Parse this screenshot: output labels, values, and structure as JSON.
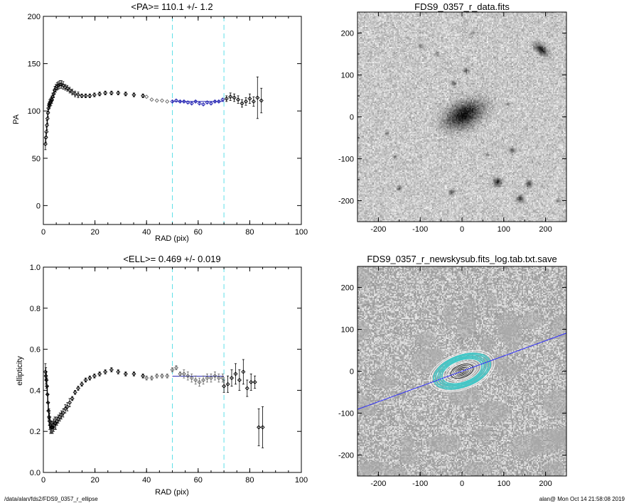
{
  "footer": {
    "path": "/data/alan/fds2/FDS9_0357_r_ellipse",
    "stamp": "alan@  Mon Oct 14 21:58:08 2019"
  },
  "chart_data": [
    {
      "id": "pa",
      "type": "scatter",
      "title": "<PA>= 110.1 +/-   1.2",
      "xlabel": "RAD (pix)",
      "ylabel": "PA",
      "xlim": [
        0,
        100
      ],
      "ylim": [
        -20,
        200
      ],
      "xticks": [
        0,
        20,
        40,
        60,
        80,
        100
      ],
      "yticks": [
        0,
        50,
        100,
        150,
        200
      ],
      "vlines": [
        50,
        70
      ],
      "fit": {
        "x": [
          50,
          70
        ],
        "y": 110.1
      },
      "series": [
        {
          "style": "black",
          "x": [
            0.8,
            1.0,
            1.2,
            1.4,
            1.6,
            1.8,
            2.0,
            2.2,
            2.4,
            2.7,
            3.0,
            3.3,
            3.6,
            4.0,
            4.4,
            4.8,
            5.3,
            5.8,
            6.4,
            7.0,
            7.7,
            8.5,
            9.3,
            10.2,
            11.2,
            12.3,
            13.5,
            14.9,
            16.4,
            18.0,
            19.8,
            21.8,
            24.0,
            26.4,
            29.0,
            31.9,
            35.1,
            38.6
          ],
          "y": [
            65,
            72,
            78,
            85,
            92,
            98,
            103,
            106,
            108,
            109,
            110,
            112,
            115,
            118,
            122,
            124,
            126,
            127,
            128,
            128,
            127,
            125,
            124,
            122,
            120,
            118,
            117,
            116,
            116,
            116,
            117,
            118,
            119,
            119,
            119,
            118,
            117,
            116
          ],
          "err": [
            6,
            5,
            5,
            5,
            5,
            4,
            4,
            4,
            4,
            4,
            4,
            4,
            4,
            4,
            4,
            4,
            4,
            4,
            4,
            4,
            4,
            3,
            3,
            3,
            3,
            3,
            3,
            2,
            2,
            2,
            2,
            2,
            2,
            2,
            2,
            2,
            2,
            2
          ]
        },
        {
          "style": "gray",
          "x": [
            40,
            42,
            44,
            46,
            48
          ],
          "y": [
            115,
            112,
            111,
            111,
            110
          ],
          "err": [
            0,
            0,
            0,
            0,
            0
          ]
        },
        {
          "style": "blue",
          "x": [
            50,
            51.5,
            53,
            54.5,
            56,
            57.5,
            59,
            60.5,
            62,
            63.5,
            65,
            66.5,
            68,
            69.5
          ],
          "y": [
            110,
            111,
            110,
            110,
            109,
            108,
            110,
            108,
            107,
            109,
            108,
            110,
            110,
            112
          ],
          "err": [
            1,
            1,
            1,
            1,
            1,
            1,
            1,
            1,
            1,
            1,
            1,
            1,
            1,
            1
          ]
        },
        {
          "style": "black",
          "x": [
            71,
            72.5,
            74,
            75.5,
            77,
            78.5,
            80,
            81.5,
            83,
            84.5
          ],
          "y": [
            113,
            115,
            114,
            112,
            108,
            110,
            113,
            110,
            114,
            111
          ],
          "err": [
            3,
            4,
            4,
            4,
            4,
            4,
            5,
            5,
            22,
            13
          ]
        }
      ]
    },
    {
      "id": "ell",
      "type": "scatter",
      "title": "<ELL>= 0.469 +/-  0.019",
      "xlabel": "RAD (pix)",
      "ylabel": "ellipticity",
      "xlim": [
        0,
        100
      ],
      "ylim": [
        0.0,
        1.0
      ],
      "xticks": [
        0,
        20,
        40,
        60,
        80,
        100
      ],
      "yticks": [
        0.0,
        0.2,
        0.4,
        0.6,
        0.8,
        1.0
      ],
      "vlines": [
        50,
        70
      ],
      "fit": {
        "x": [
          50,
          70
        ],
        "y": 0.469
      },
      "series": [
        {
          "style": "black",
          "x": [
            0.8,
            1.0,
            1.2,
            1.4,
            1.6,
            1.8,
            2.0,
            2.2,
            2.4,
            2.7,
            3.0,
            3.3,
            3.6,
            4.0,
            4.4,
            4.8,
            5.3,
            5.8,
            6.4,
            7.0,
            7.7,
            8.5,
            9.3,
            10.2,
            11.2,
            12.3,
            13.5,
            14.9,
            16.4,
            18.0,
            19.8,
            21.8,
            24.0,
            26.4,
            29.0,
            31.9,
            35.1,
            38.6
          ],
          "y": [
            0.49,
            0.47,
            0.45,
            0.42,
            0.38,
            0.34,
            0.3,
            0.27,
            0.25,
            0.23,
            0.22,
            0.22,
            0.22,
            0.23,
            0.24,
            0.24,
            0.25,
            0.26,
            0.27,
            0.28,
            0.29,
            0.31,
            0.32,
            0.34,
            0.36,
            0.39,
            0.41,
            0.43,
            0.45,
            0.46,
            0.47,
            0.48,
            0.49,
            0.5,
            0.49,
            0.48,
            0.48,
            0.47
          ],
          "err": [
            0.04,
            0.04,
            0.04,
            0.04,
            0.04,
            0.04,
            0.04,
            0.04,
            0.04,
            0.04,
            0.03,
            0.03,
            0.03,
            0.03,
            0.03,
            0.03,
            0.02,
            0.02,
            0.02,
            0.02,
            0.02,
            0.02,
            0.02,
            0.02,
            0.01,
            0.01,
            0.01,
            0.01,
            0.01,
            0.01,
            0.01,
            0.01,
            0.01,
            0.01,
            0.01,
            0.01,
            0.01,
            0.01
          ]
        },
        {
          "style": "gray",
          "x": [
            40,
            42,
            44,
            46,
            48
          ],
          "y": [
            0.46,
            0.46,
            0.47,
            0.47,
            0.47
          ],
          "err": [
            0.01,
            0.01,
            0.01,
            0.01,
            0.01
          ]
        },
        {
          "style": "gray",
          "x": [
            50,
            51.5,
            53,
            54.5,
            56,
            57.5,
            59,
            60.5,
            62,
            63.5,
            65,
            66.5,
            68,
            69.5
          ],
          "y": [
            0.5,
            0.51,
            0.48,
            0.48,
            0.47,
            0.46,
            0.45,
            0.44,
            0.45,
            0.46,
            0.46,
            0.47,
            0.46,
            0.46
          ],
          "err": [
            0.01,
            0.01,
            0.01,
            0.02,
            0.02,
            0.02,
            0.02,
            0.02,
            0.02,
            0.02,
            0.02,
            0.02,
            0.02,
            0.02
          ]
        },
        {
          "style": "black",
          "x": [
            70,
            71.5,
            73,
            74.5,
            76,
            77.5,
            79,
            80.5,
            82,
            83.5,
            85
          ],
          "y": [
            0.42,
            0.43,
            0.46,
            0.48,
            0.45,
            0.49,
            0.41,
            0.44,
            0.44,
            0.22,
            0.22
          ],
          "err": [
            0.03,
            0.04,
            0.04,
            0.05,
            0.05,
            0.06,
            0.04,
            0.04,
            0.03,
            0.09,
            0.1
          ]
        }
      ]
    },
    {
      "id": "img1",
      "type": "heatmap",
      "title": "FDS9_0357_r_data.fits",
      "xlim": [
        -250,
        250
      ],
      "ylim": [
        -250,
        250
      ],
      "xticks": [
        -200,
        -100,
        0,
        100,
        200
      ],
      "yticks": [
        -200,
        -100,
        0,
        100,
        200
      ],
      "colormap": "gray-inverted",
      "sources": [
        {
          "x": 5,
          "y": 5,
          "a": 58,
          "b": 34,
          "pa": 25,
          "peak": 0.95
        },
        {
          "x": 190,
          "y": 160,
          "a": 22,
          "b": 12,
          "pa": -40,
          "peak": 0.9
        },
        {
          "x": 85,
          "y": -155,
          "a": 12,
          "b": 12,
          "pa": 0,
          "peak": 0.8
        },
        {
          "x": 140,
          "y": -195,
          "a": 10,
          "b": 10,
          "pa": 0,
          "peak": 0.7
        },
        {
          "x": 160,
          "y": -160,
          "a": 9,
          "b": 9,
          "pa": 0,
          "peak": 0.7
        },
        {
          "x": 10,
          "y": 110,
          "a": 8,
          "b": 8,
          "pa": 0,
          "peak": 0.6
        },
        {
          "x": -20,
          "y": 80,
          "a": 7,
          "b": 7,
          "pa": 0,
          "peak": 0.6
        },
        {
          "x": -25,
          "y": -180,
          "a": 8,
          "b": 8,
          "pa": 0,
          "peak": 0.55
        },
        {
          "x": -150,
          "y": -170,
          "a": 7,
          "b": 7,
          "pa": 0,
          "peak": 0.5
        },
        {
          "x": 120,
          "y": -80,
          "a": 8,
          "b": 8,
          "pa": 0,
          "peak": 0.55
        },
        {
          "x": -180,
          "y": -40,
          "a": 6,
          "b": 6,
          "pa": 0,
          "peak": 0.45
        },
        {
          "x": -100,
          "y": 170,
          "a": 6,
          "b": 6,
          "pa": 0,
          "peak": 0.45
        },
        {
          "x": 230,
          "y": -200,
          "a": 6,
          "b": 6,
          "pa": 0,
          "peak": 0.45
        },
        {
          "x": -160,
          "y": -95,
          "a": 6,
          "b": 6,
          "pa": 0,
          "peak": 0.45
        },
        {
          "x": 60,
          "y": -90,
          "a": 5,
          "b": 5,
          "pa": 0,
          "peak": 0.4
        },
        {
          "x": -60,
          "y": 150,
          "a": 6,
          "b": 6,
          "pa": 0,
          "peak": 0.45
        },
        {
          "x": 25,
          "y": 200,
          "a": 5,
          "b": 5,
          "pa": 0,
          "peak": 0.4
        },
        {
          "x": 110,
          "y": 30,
          "a": 5,
          "b": 5,
          "pa": 0,
          "peak": 0.4
        }
      ]
    },
    {
      "id": "img2",
      "type": "heatmap",
      "title": "FDS9_0357_r_newskysub.fits_log.tab.txt.save",
      "xlim": [
        -250,
        250
      ],
      "ylim": [
        -250,
        250
      ],
      "xticks": [
        -200,
        -100,
        0,
        100,
        200
      ],
      "yticks": [
        -200,
        -100,
        0,
        100,
        200
      ],
      "colormap": "gray",
      "pa_line_deg": 20,
      "ellipses": {
        "pa": 20,
        "white_a": [
          6,
          10,
          14,
          18,
          23,
          28,
          34,
          40,
          47
        ],
        "cyan_a": [
          50,
          55,
          60,
          66,
          71
        ],
        "outer_white_a": [
          76,
          82
        ],
        "q": 0.53
      }
    }
  ]
}
